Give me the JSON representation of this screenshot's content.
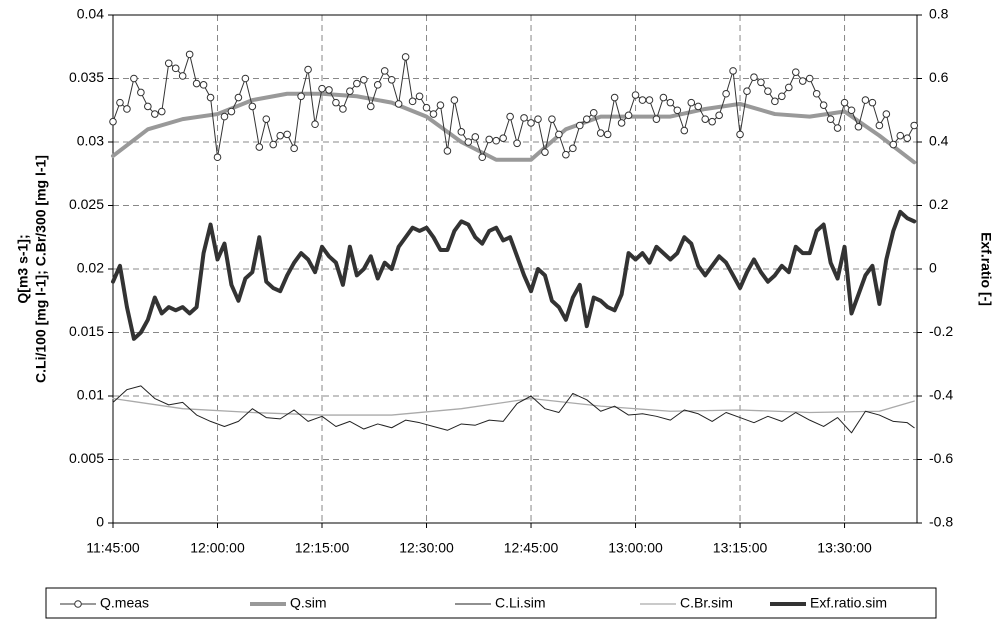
{
  "chart_data": {
    "type": "line",
    "ylabel": [
      "Q[m3 s-1];",
      "C.Li/100 [mg l-1]; C.Br/300 [mg l-1]"
    ],
    "y2label": "Exf.ratio [-]",
    "xlim": [
      "11:45:00",
      "13:40:24"
    ],
    "xticks": [
      "11:45:00",
      "12:00:00",
      "12:15:00",
      "12:30:00",
      "12:45:00",
      "13:00:00",
      "13:15:00",
      "13:30:00"
    ],
    "ylim": [
      0,
      0.04
    ],
    "yticks": [
      0,
      0.005,
      0.01,
      0.015,
      0.02,
      0.025,
      0.03,
      0.035,
      0.04
    ],
    "y2lim": [
      -0.8,
      0.8
    ],
    "y2ticks": [
      -0.8,
      -0.6,
      -0.4,
      -0.2,
      0,
      0.2,
      0.4,
      0.6,
      0.8
    ],
    "grid": true,
    "x": [
      "11:45:00",
      "11:46:00",
      "11:47:00",
      "11:48:00",
      "11:49:00",
      "11:50:00",
      "11:51:00",
      "11:52:00",
      "11:53:00",
      "11:54:00",
      "11:55:00",
      "11:56:00",
      "11:57:00",
      "11:58:00",
      "11:59:00",
      "12:00:00",
      "12:01:00",
      "12:02:00",
      "12:03:00",
      "12:04:00",
      "12:05:00",
      "12:06:00",
      "12:07:00",
      "12:08:00",
      "12:09:00",
      "12:10:00",
      "12:11:00",
      "12:12:00",
      "12:13:00",
      "12:14:00",
      "12:15:00",
      "12:16:00",
      "12:17:00",
      "12:18:00",
      "12:19:00",
      "12:20:00",
      "12:21:00",
      "12:22:00",
      "12:23:00",
      "12:24:00",
      "12:25:00",
      "12:26:00",
      "12:27:00",
      "12:28:00",
      "12:29:00",
      "12:30:00",
      "12:31:00",
      "12:32:00",
      "12:33:00",
      "12:34:00",
      "12:35:00",
      "12:36:00",
      "12:37:00",
      "12:38:00",
      "12:39:00",
      "12:40:00",
      "12:41:00",
      "12:42:00",
      "12:43:00",
      "12:44:00",
      "12:45:00",
      "12:46:00",
      "12:47:00",
      "12:48:00",
      "12:49:00",
      "12:50:00",
      "12:51:00",
      "12:52:00",
      "12:53:00",
      "12:54:00",
      "12:55:00",
      "12:56:00",
      "12:57:00",
      "12:58:00",
      "12:59:00",
      "13:00:00",
      "13:01:00",
      "13:02:00",
      "13:03:00",
      "13:04:00",
      "13:05:00",
      "13:06:00",
      "13:07:00",
      "13:08:00",
      "13:09:00",
      "13:10:00",
      "13:11:00",
      "13:12:00",
      "13:13:00",
      "13:14:00",
      "13:15:00",
      "13:16:00",
      "13:17:00",
      "13:18:00",
      "13:19:00",
      "13:20:00",
      "13:21:00",
      "13:22:00",
      "13:23:00",
      "13:24:00",
      "13:25:00",
      "13:26:00",
      "13:27:00",
      "13:28:00",
      "13:29:00",
      "13:30:00",
      "13:31:00",
      "13:32:00",
      "13:33:00",
      "13:34:00",
      "13:35:00",
      "13:36:00",
      "13:37:00",
      "13:38:00",
      "13:39:00",
      "13:40:00"
    ],
    "series": [
      {
        "name": "Q.meas",
        "color": "#333333",
        "width": 1,
        "marker": true,
        "values": [
          0.0316,
          0.0331,
          0.0326,
          0.035,
          0.0339,
          0.0328,
          0.0322,
          0.0324,
          0.0362,
          0.0358,
          0.0352,
          0.0369,
          0.0346,
          0.0345,
          0.0335,
          0.0288,
          0.032,
          0.0324,
          0.0335,
          0.035,
          0.0328,
          0.0296,
          0.0318,
          0.0298,
          0.0305,
          0.0306,
          0.0295,
          0.0336,
          0.0357,
          0.0314,
          0.0342,
          0.0341,
          0.0331,
          0.0326,
          0.034,
          0.0346,
          0.0349,
          0.0328,
          0.0345,
          0.0356,
          0.0349,
          0.033,
          0.0367,
          0.0332,
          0.0336,
          0.0327,
          0.0322,
          0.0329,
          0.0293,
          0.0333,
          0.0308,
          0.03,
          0.0304,
          0.0288,
          0.0302,
          0.0301,
          0.0303,
          0.032,
          0.0299,
          0.0319,
          0.0315,
          0.0318,
          0.0292,
          0.0318,
          0.0306,
          0.029,
          0.0295,
          0.0313,
          0.0318,
          0.0323,
          0.0307,
          0.0306,
          0.0335,
          0.0315,
          0.0321,
          0.0337,
          0.0333,
          0.0333,
          0.0318,
          0.0335,
          0.0331,
          0.0325,
          0.0309,
          0.0331,
          0.0328,
          0.0318,
          0.0316,
          0.0321,
          0.0338,
          0.0356,
          0.0306,
          0.034,
          0.0351,
          0.0347,
          0.034,
          0.0332,
          0.0336,
          0.0343,
          0.0355,
          0.0348,
          0.035,
          0.0338,
          0.0329,
          0.0318,
          0.0311,
          0.0331,
          0.0325,
          0.0312,
          0.0333,
          0.0331,
          0.0313,
          0.0322,
          0.0298,
          0.0305,
          0.0303,
          0.0313
        ]
      },
      {
        "name": "Q.sim",
        "color": "#999999",
        "width": 4,
        "x": [
          "11:45:00",
          "11:50:00",
          "11:55:00",
          "12:00:00",
          "12:05:00",
          "12:10:00",
          "12:15:00",
          "12:20:00",
          "12:25:00",
          "12:30:00",
          "12:35:00",
          "12:40:00",
          "12:45:00",
          "12:50:00",
          "12:55:00",
          "13:00:00",
          "13:05:00",
          "13:10:00",
          "13:15:00",
          "13:20:00",
          "13:25:00",
          "13:30:00",
          "13:35:00",
          "13:40:00"
        ],
        "values": [
          0.0289,
          0.031,
          0.0318,
          0.0322,
          0.0333,
          0.0338,
          0.0338,
          0.0336,
          0.0331,
          0.032,
          0.03,
          0.0286,
          0.0286,
          0.031,
          0.032,
          0.032,
          0.032,
          0.0326,
          0.033,
          0.0322,
          0.032,
          0.0324,
          0.0305,
          0.0284
        ]
      },
      {
        "name": "C.Li.sim",
        "color": "#222222",
        "width": 1,
        "x": [
          "11:45:00",
          "11:47:00",
          "11:49:00",
          "11:51:00",
          "11:53:00",
          "11:55:00",
          "11:57:00",
          "11:59:00",
          "12:01:00",
          "12:03:00",
          "12:05:00",
          "12:07:00",
          "12:09:00",
          "12:11:00",
          "12:13:00",
          "12:15:00",
          "12:17:00",
          "12:19:00",
          "12:21:00",
          "12:23:00",
          "12:25:00",
          "12:27:00",
          "12:29:00",
          "12:31:00",
          "12:33:00",
          "12:35:00",
          "12:37:00",
          "12:39:00",
          "12:41:00",
          "12:43:00",
          "12:45:00",
          "12:47:00",
          "12:49:00",
          "12:51:00",
          "12:53:00",
          "12:55:00",
          "12:57:00",
          "12:59:00",
          "13:01:00",
          "13:03:00",
          "13:05:00",
          "13:07:00",
          "13:09:00",
          "13:11:00",
          "13:13:00",
          "13:15:00",
          "13:17:00",
          "13:19:00",
          "13:21:00",
          "13:23:00",
          "13:25:00",
          "13:27:00",
          "13:29:00",
          "13:31:00",
          "13:33:00",
          "13:35:00",
          "13:37:00",
          "13:39:00",
          "13:40:00"
        ],
        "values": [
          0.0095,
          0.0105,
          0.0108,
          0.0098,
          0.0093,
          0.0095,
          0.0085,
          0.008,
          0.0076,
          0.008,
          0.009,
          0.0083,
          0.0082,
          0.0089,
          0.008,
          0.0084,
          0.0076,
          0.008,
          0.0074,
          0.0078,
          0.0075,
          0.0081,
          0.0079,
          0.0076,
          0.0073,
          0.0078,
          0.0077,
          0.0081,
          0.008,
          0.0094,
          0.01,
          0.009,
          0.0087,
          0.0102,
          0.0097,
          0.0088,
          0.0092,
          0.0085,
          0.0086,
          0.0084,
          0.0081,
          0.0089,
          0.0086,
          0.008,
          0.0087,
          0.0083,
          0.0079,
          0.0084,
          0.008,
          0.0087,
          0.0081,
          0.0076,
          0.0083,
          0.0071,
          0.0088,
          0.0085,
          0.008,
          0.0079,
          0.0075
        ]
      },
      {
        "name": "C.Br.sim",
        "color": "#aaaaaa",
        "width": 1.3,
        "x": [
          "11:45:00",
          "11:55:00",
          "12:05:00",
          "12:15:00",
          "12:25:00",
          "12:35:00",
          "12:45:00",
          "12:55:00",
          "13:05:00",
          "13:15:00",
          "13:25:00",
          "13:35:00",
          "13:40:00"
        ],
        "values": [
          0.0098,
          0.009,
          0.0087,
          0.0085,
          0.0085,
          0.009,
          0.0098,
          0.0092,
          0.0088,
          0.0089,
          0.0087,
          0.0088,
          0.0096
        ]
      },
      {
        "name": "Exf.ratio.sim",
        "color": "#333333",
        "width": 4,
        "axis": "y2",
        "values": [
          -0.04,
          0.01,
          -0.12,
          -0.22,
          -0.2,
          -0.16,
          -0.09,
          -0.14,
          -0.12,
          -0.13,
          -0.12,
          -0.14,
          -0.12,
          0.05,
          0.14,
          0.03,
          0.08,
          -0.05,
          -0.1,
          -0.03,
          -0.01,
          0.1,
          -0.04,
          -0.06,
          -0.07,
          -0.02,
          0.02,
          0.05,
          0.03,
          -0.01,
          0.07,
          0.04,
          0.02,
          -0.05,
          0.07,
          -0.02,
          0,
          0.04,
          -0.03,
          0.02,
          0,
          0.07,
          0.1,
          0.13,
          0.12,
          0.13,
          0.1,
          0.06,
          0.06,
          0.12,
          0.15,
          0.14,
          0.1,
          0.08,
          0.12,
          0.13,
          0.09,
          0.1,
          0.04,
          -0.02,
          -0.07,
          0,
          -0.02,
          -0.1,
          -0.12,
          -0.16,
          -0.09,
          -0.05,
          -0.18,
          -0.09,
          -0.1,
          -0.12,
          -0.13,
          -0.08,
          0.05,
          0.03,
          0.05,
          0.02,
          0.07,
          0.05,
          0.03,
          0.05,
          0.1,
          0.08,
          0.01,
          -0.02,
          0.01,
          0.04,
          0.02,
          -0.02,
          -0.06,
          -0.01,
          0.03,
          -0.01,
          -0.04,
          -0.02,
          0.01,
          -0.01,
          0.07,
          0.05,
          0.05,
          0.12,
          0.14,
          0.02,
          -0.03,
          0.07,
          -0.14,
          -0.08,
          -0.02,
          0.01,
          -0.11,
          0.03,
          0.12,
          0.18,
          0.16,
          0.15
        ]
      }
    ]
  }
}
